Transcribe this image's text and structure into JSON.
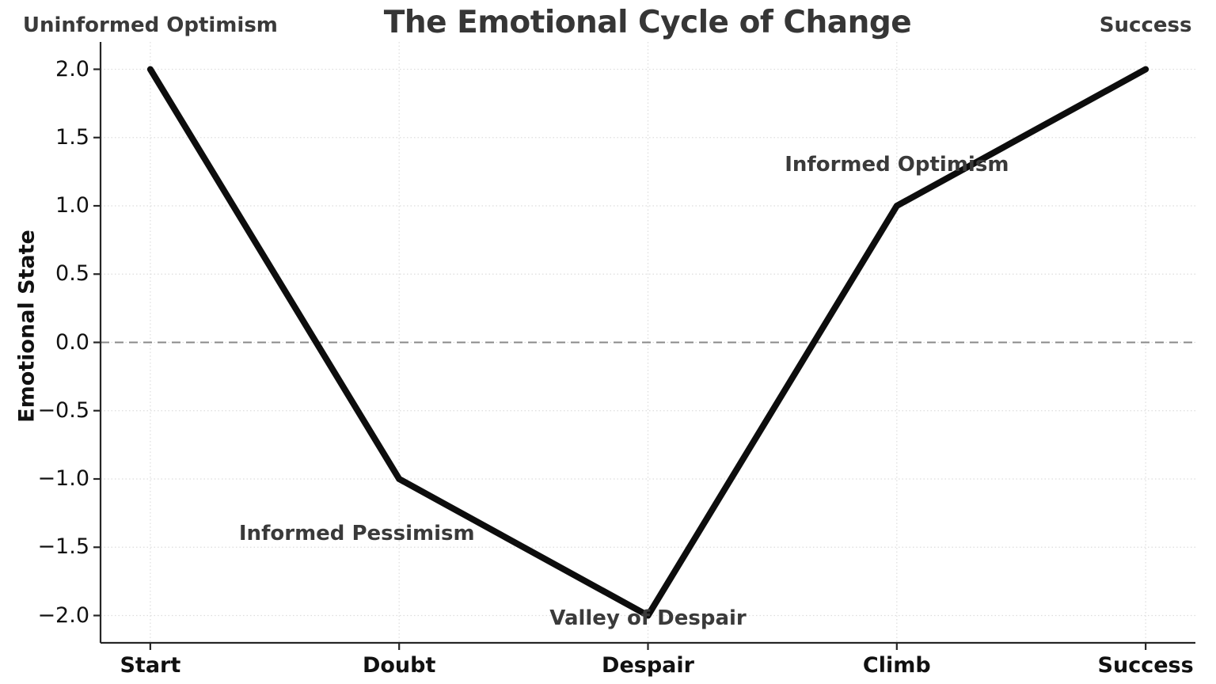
{
  "chart_data": {
    "type": "line",
    "title": "The Emotional Cycle of Change",
    "ylabel": "Emotional State",
    "xlabel": "",
    "categories": [
      "Start",
      "Doubt",
      "Despair",
      "Climb",
      "Success"
    ],
    "values": [
      2.0,
      -1.0,
      -2.0,
      1.0,
      2.0
    ],
    "yticks": [
      2.0,
      1.5,
      1.0,
      0.5,
      0.0,
      -0.5,
      -1.0,
      -1.5,
      -2.0
    ],
    "ytick_labels": [
      "2.0",
      "1.5",
      "1.0",
      "0.5",
      "0.0",
      "−0.5",
      "−1.0",
      "−1.5",
      "−2.0"
    ],
    "xlim": [
      -0.2,
      4.2
    ],
    "ylim": [
      -2.2,
      2.2
    ],
    "grid": "dotted light gray, both axes",
    "legend": "none",
    "zero_line": {
      "y": 0,
      "style": "dashed",
      "color": "#8a8a8a"
    },
    "line_color": "#0d0d0d",
    "annotations": [
      {
        "text": "Uninformed Optimism",
        "x": 0.0,
        "y": 2.32
      },
      {
        "text": "Success",
        "x": 4.0,
        "y": 2.32
      },
      {
        "text": "Informed Pessimism",
        "x": 0.83,
        "y": -1.4
      },
      {
        "text": "Valley of Despair",
        "x": 2.0,
        "y": -2.02
      },
      {
        "text": "Informed Optimism",
        "x": 3.0,
        "y": 1.3
      }
    ],
    "colors": {
      "title_text": "#363636",
      "annotation_text": "#3a3a3a",
      "tick_text": "#111111",
      "grid": "#dddddd",
      "spine": "#262626",
      "line": "#0d0d0d",
      "background": "#ffffff"
    }
  }
}
